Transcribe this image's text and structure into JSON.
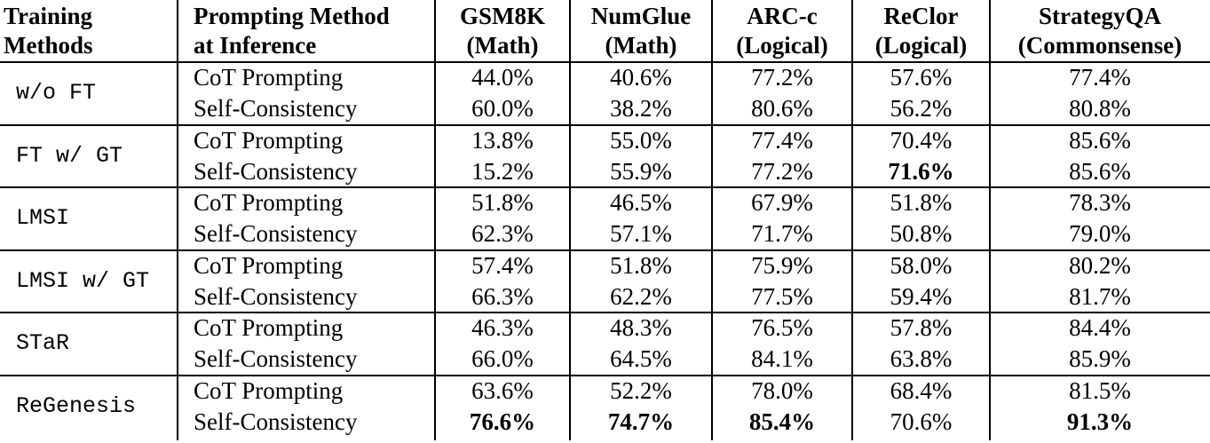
{
  "header": [
    [
      "Training",
      "Methods"
    ],
    [
      "Prompting Method",
      "at Inference"
    ],
    [
      "GSM8K",
      "(Math)"
    ],
    [
      "NumGlue",
      "(Math)"
    ],
    [
      "ARC-c",
      "(Logical)"
    ],
    [
      "ReClor",
      "(Logical)"
    ],
    [
      "StrategyQA",
      "(Commonsense)"
    ]
  ],
  "groups": [
    {
      "method": "w/o FT",
      "rows": [
        {
          "prompting": "CoT Prompting",
          "values": [
            "44.0%",
            "40.6%",
            "77.2%",
            "57.6%",
            "77.4%"
          ],
          "bold": []
        },
        {
          "prompting": "Self-Consistency",
          "values": [
            "60.0%",
            "38.2%",
            "80.6%",
            "56.2%",
            "80.8%"
          ],
          "bold": []
        }
      ]
    },
    {
      "method": "FT w/ GT",
      "rows": [
        {
          "prompting": "CoT Prompting",
          "values": [
            "13.8%",
            "55.0%",
            "77.4%",
            "70.4%",
            "85.6%"
          ],
          "bold": []
        },
        {
          "prompting": "Self-Consistency",
          "values": [
            "15.2%",
            "55.9%",
            "77.2%",
            "71.6%",
            "85.6%"
          ],
          "bold": [
            3
          ]
        }
      ]
    },
    {
      "method": "LMSI",
      "rows": [
        {
          "prompting": "CoT Prompting",
          "values": [
            "51.8%",
            "46.5%",
            "67.9%",
            "51.8%",
            "78.3%"
          ],
          "bold": []
        },
        {
          "prompting": "Self-Consistency",
          "values": [
            "62.3%",
            "57.1%",
            "71.7%",
            "50.8%",
            "79.0%"
          ],
          "bold": []
        }
      ]
    },
    {
      "method": "LMSI w/ GT",
      "rows": [
        {
          "prompting": "CoT Prompting",
          "values": [
            "57.4%",
            "51.8%",
            "75.9%",
            "58.0%",
            "80.2%"
          ],
          "bold": []
        },
        {
          "prompting": "Self-Consistency",
          "values": [
            "66.3%",
            "62.2%",
            "77.5%",
            "59.4%",
            "81.7%"
          ],
          "bold": []
        }
      ]
    },
    {
      "method": "STaR",
      "rows": [
        {
          "prompting": "CoT Prompting",
          "values": [
            "46.3%",
            "48.3%",
            "76.5%",
            "57.8%",
            "84.4%"
          ],
          "bold": []
        },
        {
          "prompting": "Self-Consistency",
          "values": [
            "66.0%",
            "64.5%",
            "84.1%",
            "63.8%",
            "85.9%"
          ],
          "bold": []
        }
      ]
    },
    {
      "method": "ReGenesis",
      "rows": [
        {
          "prompting": "CoT Prompting",
          "values": [
            "63.6%",
            "52.2%",
            "78.0%",
            "68.4%",
            "81.5%"
          ],
          "bold": []
        },
        {
          "prompting": "Self-Consistency",
          "values": [
            "76.6%",
            "74.7%",
            "85.4%",
            "70.6%",
            "91.3%"
          ],
          "bold": [
            0,
            1,
            2,
            4
          ]
        }
      ]
    }
  ]
}
